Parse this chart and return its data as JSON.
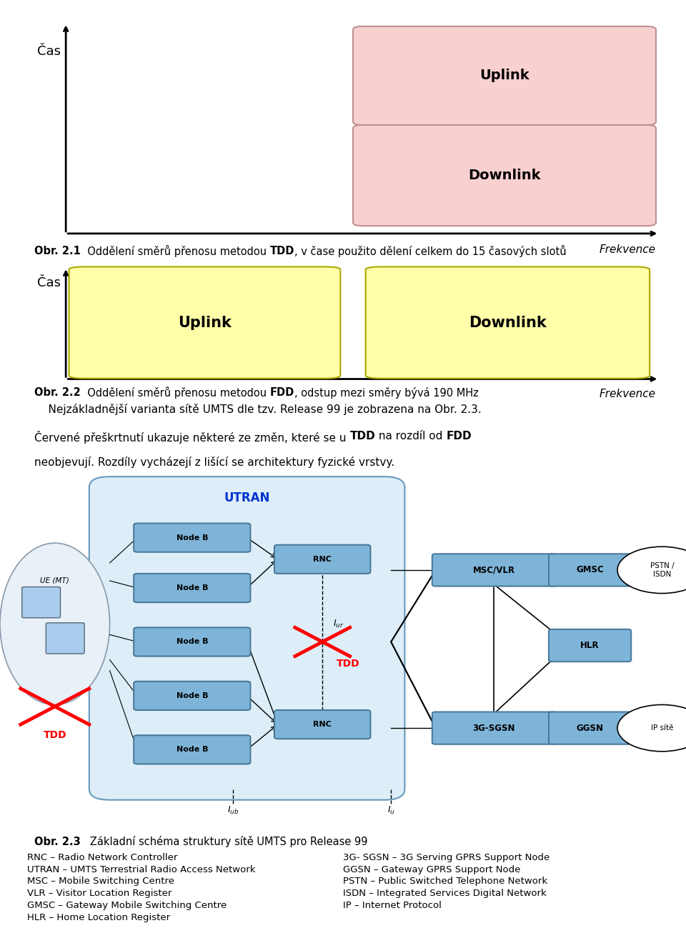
{
  "fig_width": 9.6,
  "fig_height": 13.06,
  "bg_color": "#ffffff",
  "diag1_box_color": "#f9d0d0",
  "diag1_box_edge": "#c09090",
  "diag1_ylabel": "Čas",
  "diag1_xlabel": "Frekvence",
  "diag1_uplink": "Uplink",
  "diag1_downlink": "Downlink",
  "diag2_box_color": "#ffffaa",
  "diag2_box_edge": "#aaa800",
  "diag2_ylabel": "Čas",
  "diag2_xlabel": "Frekvence",
  "diag2_uplink": "Uplink",
  "diag2_downlink": "Downlink",
  "node_color": "#7eb4d8",
  "node_edge": "#4a7a9b",
  "utran_bg": "#e8f4fc",
  "caption1_prefix": "Obr. 2.1",
  "caption1_mid": "  Oddělení směrů přenosu metodou ",
  "caption1_bold": "TDD",
  "caption1_rest": ", v čase použito dělení celkem do 15 časových slotů",
  "caption2_prefix": "Obr. 2.2",
  "caption2_mid": "  Oddělení směrů přenosu metodou ",
  "caption2_bold": "FDD",
  "caption2_rest": ", odstup mezi směry bývá 190 MHz",
  "para_line1": "    Nejzákladnější varianta sítě UMTS dle tzv. Release 99 je zobrazena na Obr. 2.3.",
  "para_line2a": "Červené přeškrtnutí ukazuje některé ze změn, které se u ",
  "para_line2b": "TDD",
  "para_line2c": " na rozdíl od ",
  "para_line2d": "FDD",
  "para_line3": "neobjevují. Rozdíly vycházejí z lišící se architektury fyzické vrstvy.",
  "caption3_prefix": "Obr. 2.3",
  "caption3_rest": "   Základní schéma struktury sítě UMTS pro Release 99",
  "legend_left": [
    "RNC – Radio Network Controller",
    "UTRAN – UMTS Terrestrial Radio Access Network",
    "MSC – Mobile Switching Centre",
    "VLR – Visitor Location Register",
    "GMSC – Gateway Mobile Switching Centre",
    "HLR – Home Location Register"
  ],
  "legend_right": [
    "3G- SGSN – 3G Serving GPRS Support Node",
    "GGSN – Gateway GPRS Support Node",
    "PSTN – Public Switched Telephone Network",
    "ISDN – Integrated Services Digital Network",
    "IP – Internet Protocol"
  ]
}
